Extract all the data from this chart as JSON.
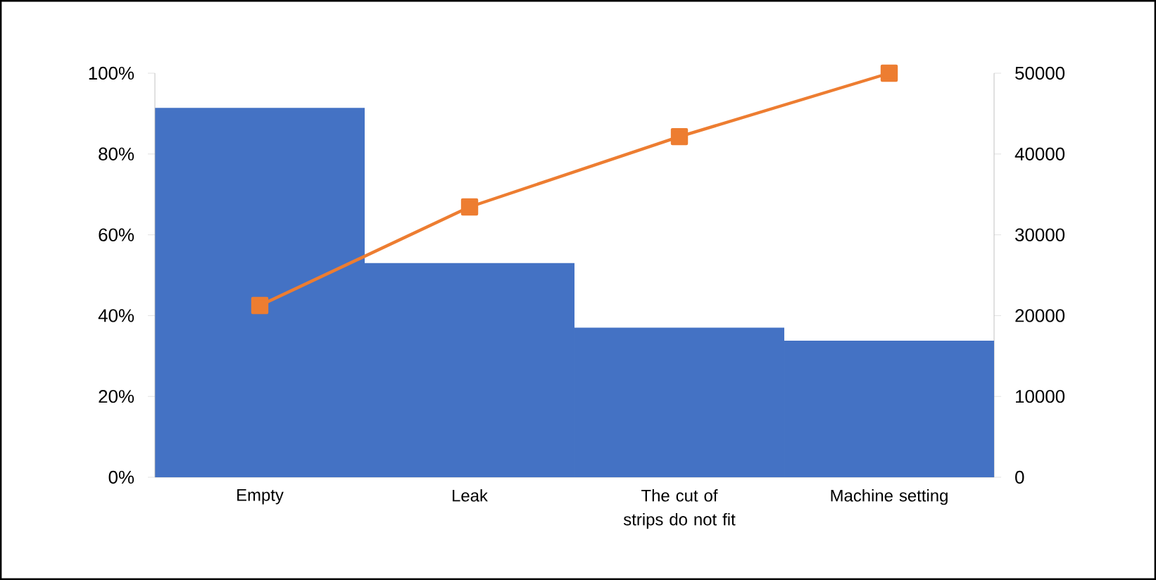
{
  "chart_data": {
    "type": "bar",
    "categories": [
      "Empty",
      "Leak",
      "The cut of strips do not fit",
      "Machine setting"
    ],
    "series": [
      {
        "color": "#4472c4",
        "axis": "y2",
        "values": [
          45700,
          26500,
          18500,
          16900
        ]
      },
      {
        "type": "line",
        "color": "#ed7d31",
        "marker": "square",
        "line_style": "solid",
        "values": [
          42.5,
          66.9,
          84.3,
          100
        ]
      }
    ],
    "ylim": [
      0,
      100
    ],
    "yticks": [
      {
        "value": 0,
        "label": "0%"
      },
      {
        "value": 20,
        "label": "20%"
      },
      {
        "value": 40,
        "label": "40%"
      },
      {
        "value": 60,
        "label": "60%"
      },
      {
        "value": 80,
        "label": "80%"
      },
      {
        "value": 100,
        "label": "100%"
      }
    ],
    "y2lim": [
      0,
      50000
    ],
    "y2ticks": [
      0,
      10000,
      20000,
      30000,
      40000,
      50000
    ]
  }
}
